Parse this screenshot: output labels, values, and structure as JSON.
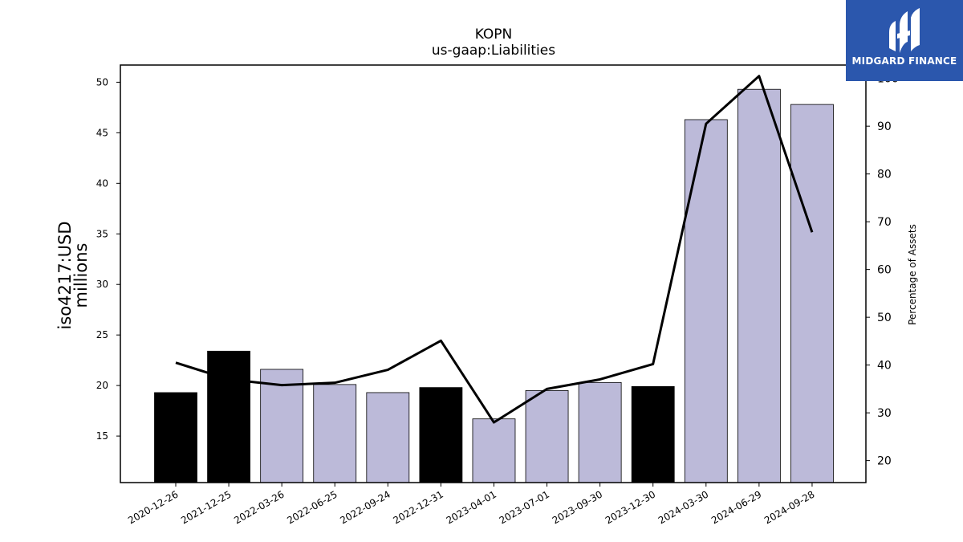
{
  "chart_data": {
    "type": "bar",
    "title": "KOPN",
    "subtitle": "us-gaap:Liabilities",
    "ylabel_left": [
      "iso4217:USD",
      "millions"
    ],
    "ylabel_right": "Percentage of Assets",
    "categories": [
      "2020-12-26",
      "2021-12-25",
      "2022-03-26",
      "2022-06-25",
      "2022-09-24",
      "2022-12-31",
      "2023-04-01",
      "2023-07-01",
      "2023-09-30",
      "2023-12-30",
      "2024-03-30",
      "2024-06-29",
      "2024-09-28"
    ],
    "bar_values": [
      19.3,
      23.4,
      21.6,
      20.1,
      19.3,
      19.8,
      16.7,
      19.5,
      20.3,
      19.9,
      46.3,
      49.3,
      47.8
    ],
    "bar_highlight": [
      true,
      true,
      false,
      false,
      false,
      true,
      false,
      false,
      false,
      true,
      false,
      false,
      false
    ],
    "line_values": [
      40.5,
      37.0,
      35.8,
      36.3,
      39.0,
      45.1,
      28.0,
      35.0,
      37.0,
      40.2,
      90.5,
      100.5,
      67.8
    ],
    "y_left_ticks": [
      15,
      20,
      25,
      30,
      35,
      40,
      45,
      50
    ],
    "y_left_range": [
      10.4,
      51.7
    ],
    "y_right_ticks": [
      20,
      30,
      40,
      50,
      60,
      70,
      80,
      90,
      100
    ],
    "y_right_range": [
      15.4,
      102.8
    ],
    "colors": {
      "bar": "#bcbad9",
      "bar_highlight": "#000000",
      "line": "#000000"
    }
  },
  "logo": {
    "text": "MIDGARD FINANCE",
    "color": "#2b57ad"
  }
}
